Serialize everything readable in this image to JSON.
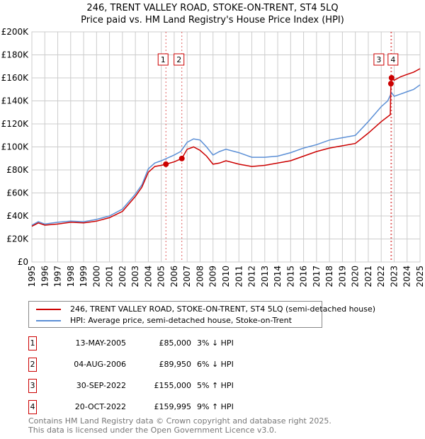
{
  "chart_data": {
    "type": "line",
    "title": "246, TRENT VALLEY ROAD, STOKE-ON-TRENT, ST4 5LQ",
    "subtitle": "Price paid vs. HM Land Registry's House Price Index (HPI)",
    "xlim": [
      1995,
      2025
    ],
    "ylim": [
      0,
      200000
    ],
    "yticks": [
      "£0",
      "£20K",
      "£40K",
      "£60K",
      "£80K",
      "£100K",
      "£120K",
      "£140K",
      "£160K",
      "£180K",
      "£200K"
    ],
    "xticks": [
      "1995",
      "1996",
      "1997",
      "1998",
      "1999",
      "2000",
      "2001",
      "2002",
      "2003",
      "2004",
      "2005",
      "2006",
      "2007",
      "2008",
      "2009",
      "2010",
      "2011",
      "2012",
      "2013",
      "2014",
      "2015",
      "2016",
      "2017",
      "2018",
      "2019",
      "2020",
      "2021",
      "2022",
      "2023",
      "2024",
      "2025"
    ],
    "grid": true,
    "series": [
      {
        "name": "246, TRENT VALLEY ROAD, STOKE-ON-TRENT, ST4 5LQ (semi-detached house)",
        "color": "#cc0000",
        "x": [
          1995,
          1995.5,
          1996,
          1997,
          1998,
          1999,
          2000,
          2001,
          2002,
          2003,
          2003.5,
          2004,
          2004.5,
          2005,
          2005.36,
          2006,
          2006.59,
          2007,
          2007.5,
          2008,
          2008.5,
          2009,
          2009.5,
          2010,
          2011,
          2012,
          2013,
          2014,
          2015,
          2016,
          2017,
          2018,
          2019,
          2020,
          2021,
          2022,
          2022.7,
          2022.75,
          2022.8,
          2023,
          2023.5,
          2024,
          2024.5,
          2025
        ],
        "y": [
          31000,
          34000,
          32000,
          33000,
          34500,
          34000,
          35500,
          38500,
          44000,
          57000,
          65000,
          78000,
          83000,
          84000,
          85000,
          87000,
          89950,
          98000,
          100000,
          97000,
          92000,
          85000,
          86000,
          88000,
          85000,
          83000,
          84000,
          86000,
          88000,
          92000,
          96000,
          99000,
          101000,
          103000,
          112000,
          122000,
          128000,
          155000,
          159995,
          158000,
          161000,
          163000,
          165000,
          168000
        ]
      },
      {
        "name": "HPI: Average price, semi-detached house, Stoke-on-Trent",
        "color": "#5b8fd6",
        "x": [
          1995,
          1995.5,
          1996,
          1997,
          1998,
          1999,
          2000,
          2001,
          2002,
          2003,
          2003.5,
          2004,
          2004.5,
          2005,
          2006,
          2006.5,
          2007,
          2007.5,
          2008,
          2008.5,
          2009,
          2009.5,
          2010,
          2011,
          2012,
          2013,
          2014,
          2015,
          2016,
          2017,
          2018,
          2019,
          2020,
          2021,
          2022,
          2022.5,
          2022.8,
          2023,
          2023.5,
          2024,
          2024.5,
          2025
        ],
        "y": [
          32000,
          35000,
          33000,
          34500,
          35500,
          35000,
          37000,
          40000,
          46000,
          59000,
          67000,
          81000,
          86000,
          88000,
          93000,
          96000,
          104000,
          107000,
          106000,
          100000,
          93000,
          96000,
          98000,
          95000,
          91000,
          91000,
          92000,
          95000,
          99000,
          102000,
          106000,
          108000,
          110000,
          122000,
          135000,
          140000,
          147000,
          144000,
          146000,
          148000,
          150000,
          154000
        ]
      }
    ],
    "markers": [
      {
        "label": "1",
        "x": 2005.36,
        "y": 85000
      },
      {
        "label": "2",
        "x": 2006.59,
        "y": 89950
      },
      {
        "label": "3",
        "x": 2022.75,
        "y": 155000
      },
      {
        "label": "4",
        "x": 2022.8,
        "y": 159995
      }
    ]
  },
  "legend": {
    "red": "246, TRENT VALLEY ROAD, STOKE-ON-TRENT, ST4 5LQ (semi-detached house)",
    "blue": "HPI: Average price, semi-detached house, Stoke-on-Trent"
  },
  "transactions": [
    {
      "n": "1",
      "date": "13-MAY-2005",
      "price": "£85,000",
      "hpi": "3% ↓ HPI"
    },
    {
      "n": "2",
      "date": "04-AUG-2006",
      "price": "£89,950",
      "hpi": "6% ↓ HPI"
    },
    {
      "n": "3",
      "date": "30-SEP-2022",
      "price": "£155,000",
      "hpi": "5% ↑ HPI"
    },
    {
      "n": "4",
      "date": "20-OCT-2022",
      "price": "£159,995",
      "hpi": "9% ↑ HPI"
    }
  ],
  "footer": {
    "line1": "Contains HM Land Registry data © Crown copyright and database right 2025.",
    "line2": "This data is licensed under the Open Government Licence v3.0."
  }
}
